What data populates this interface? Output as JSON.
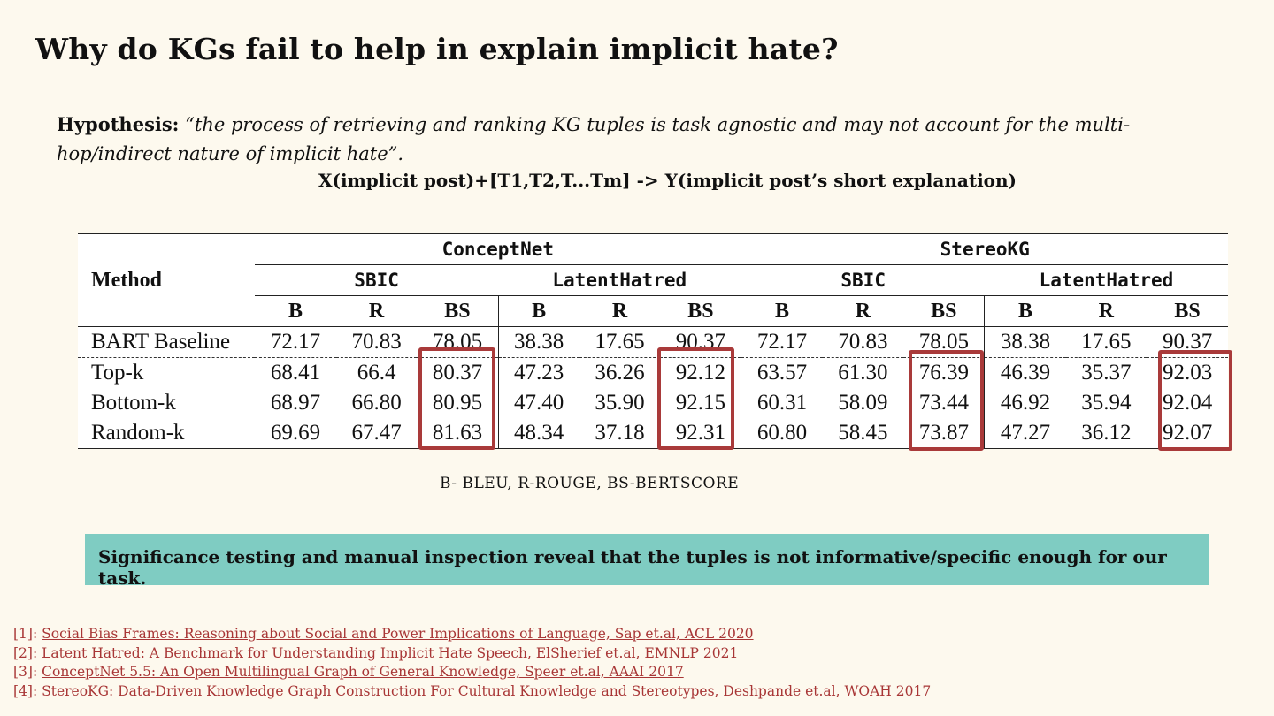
{
  "slide": {
    "title": "Why do KGs fail to help in explain implicit hate?",
    "hypothesis_label": "Hypothesis:",
    "hypothesis_text": "“the process of retrieving and ranking KG tuples is task agnostic and may not account for the multi-hop/indirect nature of implicit hate”.",
    "formula": "X(implicit post)+[T1,T2,T...Tm] -> Y(implicit post’s short explanation)",
    "legend": "B- BLEU, R-ROUGE, BS-BERTSCORE",
    "callout": "Significance testing and manual inspection reveal that the tuples is not informative/specific enough for our task."
  },
  "table": {
    "method_header": "Method",
    "kg_headers": [
      "ConceptNet",
      "StereoKG"
    ],
    "dataset_headers": [
      "SBIC",
      "LatentHatred",
      "SBIC",
      "LatentHatred"
    ],
    "metric_headers": [
      "B",
      "R",
      "BS",
      "B",
      "R",
      "BS",
      "B",
      "R",
      "BS",
      "B",
      "R",
      "BS"
    ],
    "rows": [
      {
        "method": "BART Baseline",
        "values": [
          "72.17",
          "70.83",
          "78.05",
          "38.38",
          "17.65",
          "90.37",
          "72.17",
          "70.83",
          "78.05",
          "38.38",
          "17.65",
          "90.37"
        ]
      },
      {
        "method": "Top-k",
        "values": [
          "68.41",
          "66.4",
          "80.37",
          "47.23",
          "36.26",
          "92.12",
          "63.57",
          "61.30",
          "76.39",
          "46.39",
          "35.37",
          "92.03"
        ]
      },
      {
        "method": "Bottom-k",
        "values": [
          "68.97",
          "66.80",
          "80.95",
          "47.40",
          "35.90",
          "92.15",
          "60.31",
          "58.09",
          "73.44",
          "46.92",
          "35.94",
          "92.04"
        ]
      },
      {
        "method": "Random-k",
        "values": [
          "69.69",
          "67.47",
          "81.63",
          "48.34",
          "37.18",
          "92.31",
          "60.80",
          "58.45",
          "73.87",
          "47.27",
          "36.12",
          "92.07"
        ]
      }
    ],
    "highlight_color": "#a93a3a"
  },
  "references": [
    {
      "num": "[1]:",
      "text": "Social Bias Frames: Reasoning about Social and Power Implications of Language, Sap et.al, ACL 2020"
    },
    {
      "num": "[2]:",
      "text": "Latent Hatred: A Benchmark for Understanding Implicit Hate Speech, ElSherief et.al, EMNLP 2021"
    },
    {
      "num": "[3]:",
      "text": " ConceptNet 5.5: An Open Multilingual Graph of General Knowledge, Speer et.al, AAAI 2017"
    },
    {
      "num": "[4]:",
      "text": "StereoKG: Data-Driven Knowledge Graph Construction For Cultural Knowledge and Stereotypes, Deshpande et.al, WOAH 2017"
    }
  ],
  "colors": {
    "background": "#fdf9ee",
    "callout": "#7fccc2",
    "link": "#a83636"
  }
}
